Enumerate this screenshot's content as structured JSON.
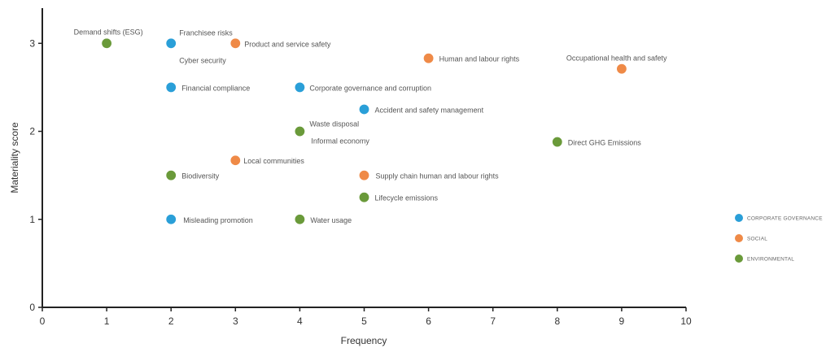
{
  "chart_data": {
    "type": "scatter",
    "xlabel": "Frequency",
    "ylabel": "Materiality score",
    "xlim": [
      0,
      10
    ],
    "ylim": [
      0,
      3.4
    ],
    "xticks": [
      0,
      1,
      2,
      3,
      4,
      5,
      6,
      7,
      8,
      9,
      10
    ],
    "yticks": [
      0,
      1,
      2,
      3
    ],
    "grid": false,
    "legend_position": "right",
    "colors": {
      "corporate_governance": "#2a9fd8",
      "social": "#ef8a47",
      "environmental": "#6a9a3a"
    },
    "series": [
      {
        "name": "CORPORATE GOVERNANCE",
        "key": "corporate_governance",
        "points": [
          {
            "x": 2,
            "y": 3.0,
            "label": "Franchisee risks"
          },
          {
            "x": 2,
            "y": 3.0,
            "label": "Cyber security"
          },
          {
            "x": 2,
            "y": 2.5,
            "label": "Financial compliance"
          },
          {
            "x": 4,
            "y": 2.5,
            "label": "Corporate governance and corruption"
          },
          {
            "x": 5,
            "y": 2.25,
            "label": "Accident and safety management"
          },
          {
            "x": 4,
            "y": 2.0,
            "label": "Informal economy"
          },
          {
            "x": 2,
            "y": 1.0,
            "label": "Misleading promotion"
          }
        ]
      },
      {
        "name": "SOCIAL",
        "key": "social",
        "points": [
          {
            "x": 3,
            "y": 3.0,
            "label": "Product and service safety"
          },
          {
            "x": 6,
            "y": 2.83,
            "label": "Human and labour rights"
          },
          {
            "x": 9,
            "y": 2.71,
            "label": "Occupational health and safety"
          },
          {
            "x": 3,
            "y": 1.67,
            "label": "Local communities"
          },
          {
            "x": 5,
            "y": 1.5,
            "label": "Supply chain human and labour rights"
          }
        ]
      },
      {
        "name": "ENVIRONMENTAL",
        "key": "environmental",
        "points": [
          {
            "x": 1,
            "y": 3.0,
            "label": "Demand shifts (ESG)"
          },
          {
            "x": 4,
            "y": 2.0,
            "label": "Waste disposal"
          },
          {
            "x": 8,
            "y": 1.88,
            "label": "Direct GHG Emissions"
          },
          {
            "x": 2,
            "y": 1.5,
            "label": "Biodiversity"
          },
          {
            "x": 5,
            "y": 1.25,
            "label": "Lifecycle emissions"
          },
          {
            "x": 4,
            "y": 1.0,
            "label": "Water usage"
          }
        ]
      }
    ]
  }
}
